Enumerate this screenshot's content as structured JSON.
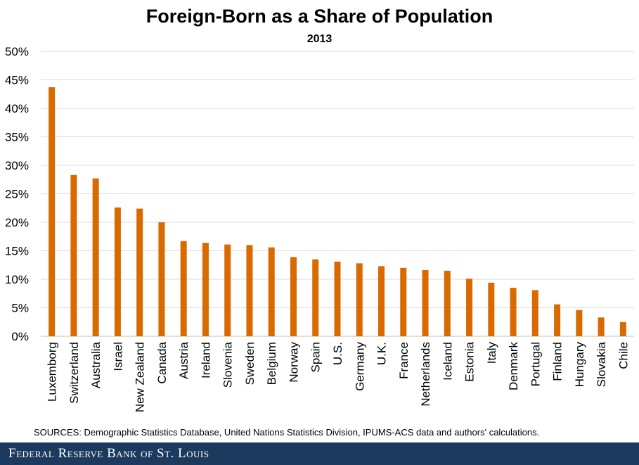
{
  "chart_data": {
    "type": "bar",
    "title": "Foreign-Born as a Share of Population",
    "subtitle": "2013",
    "xlabel": "",
    "ylabel": "",
    "ylim": [
      0,
      50
    ],
    "yticks": [
      "0%",
      "5%",
      "10%",
      "15%",
      "20%",
      "25%",
      "30%",
      "35%",
      "40%",
      "45%",
      "50%"
    ],
    "grid": true,
    "bar_color": "#d86a00",
    "categories": [
      "Luxemborg",
      "Switzerland",
      "Australia",
      "Israel",
      "New Zealand",
      "Canada",
      "Austria",
      "Ireland",
      "Slovenia",
      "Sweden",
      "Belgium",
      "Norway",
      "Spain",
      "U.S.",
      "Germany",
      "U.K.",
      "France",
      "Netherlands",
      "Iceland",
      "Estonia",
      "Italy",
      "Denmark",
      "Portugal",
      "Finland",
      "Hungary",
      "Slovakia",
      "Chile"
    ],
    "values": [
      43.7,
      28.3,
      27.7,
      22.6,
      22.4,
      20.0,
      16.7,
      16.4,
      16.1,
      16.0,
      15.6,
      13.9,
      13.5,
      13.1,
      12.8,
      12.3,
      12.0,
      11.6,
      11.5,
      10.1,
      9.4,
      8.5,
      8.1,
      5.6,
      4.6,
      3.3,
      2.5
    ]
  },
  "sources": "SOURCES: Demographic Statistics Database, United Nations Statistics Division, IPUMS-ACS data and authors' calculations.",
  "footer": {
    "brand": "Federal Reserve Bank of St. Louis",
    "background": "#1b3a5e"
  }
}
